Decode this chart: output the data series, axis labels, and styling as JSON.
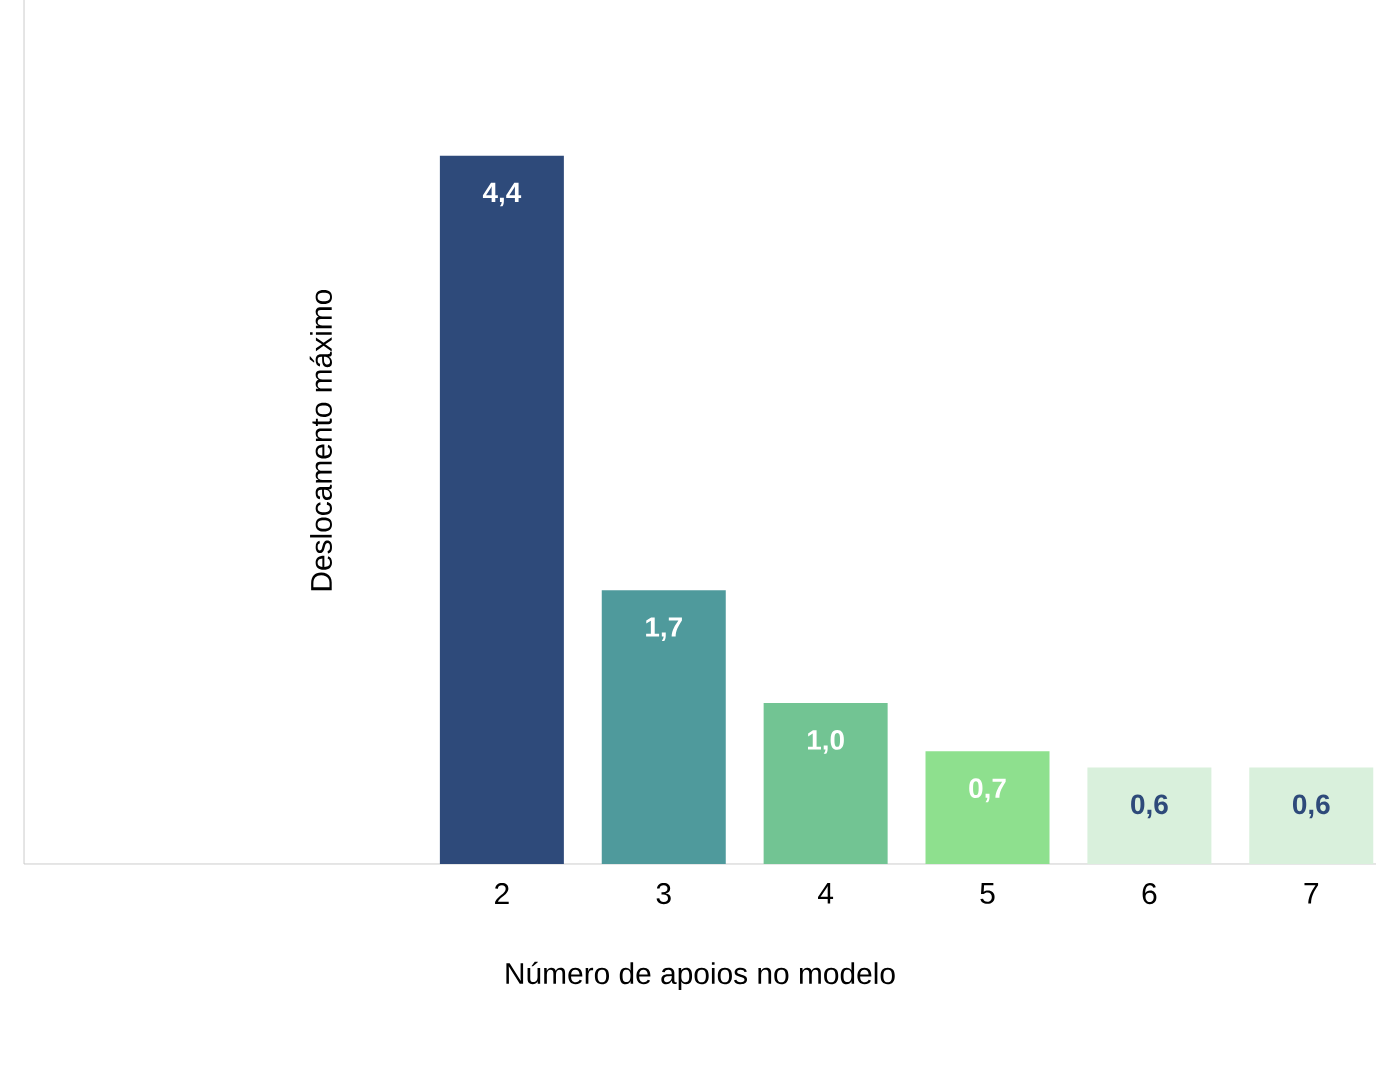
{
  "chart_data": {
    "type": "bar",
    "categories": [
      null,
      null,
      "2",
      "3",
      "4",
      "5",
      "6",
      "7"
    ],
    "values": [
      null,
      null,
      4.4,
      1.7,
      1.0,
      0.7,
      0.6,
      0.6
    ],
    "colors": [
      "#2e4a7a",
      "#2e4a7a",
      "#2e4a7a",
      "#4f9a9c",
      "#72c493",
      "#8ee08e",
      "#d9f0dc",
      "#d9f0dc"
    ],
    "value_labels": [
      null,
      null,
      "4,4",
      "1,7",
      "1,0",
      "0,7",
      "0,6",
      "0,6"
    ],
    "xlabel": "Número de apoios no modelo",
    "ylabel": "Deslocamento máximo",
    "grid": false
  }
}
